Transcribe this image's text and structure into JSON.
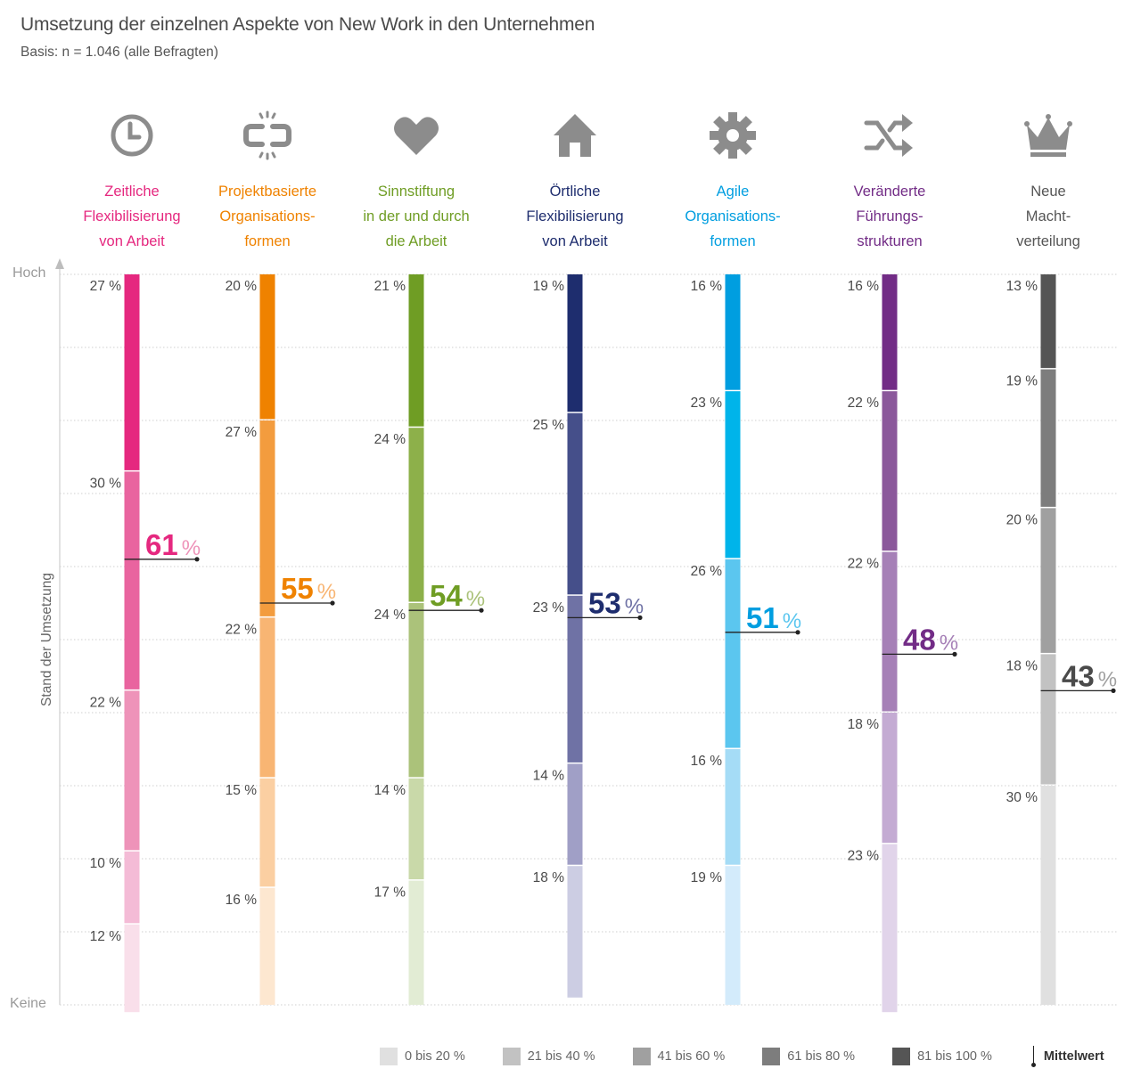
{
  "header": {
    "title": "Umsetzung der einzelnen Aspekte von New Work in den Unternehmen",
    "subtitle": "Basis: n = 1.046 (alle Befragten)"
  },
  "categories": [
    {
      "icon": "clock-icon",
      "label": [
        "Zeitliche",
        "Flexibilisierung",
        "von Arbeit"
      ],
      "color": "#e5287f"
    },
    {
      "icon": "broken-link-icon",
      "label": [
        "Projektbasierte",
        "Organisations-",
        "formen"
      ],
      "color": "#ef8200"
    },
    {
      "icon": "heart-icon",
      "label": [
        "Sinnstiftung",
        "in der und durch",
        "die Arbeit"
      ],
      "color": "#6f9d24"
    },
    {
      "icon": "home-icon",
      "label": [
        "Örtliche",
        "Flexibilisierung",
        "von Arbeit"
      ],
      "color": "#1e2d6e"
    },
    {
      "icon": "gear-icon",
      "label": [
        "Agile",
        "Organisations-",
        "formen"
      ],
      "color": "#009ee0"
    },
    {
      "icon": "shuffle-icon",
      "label": [
        "Veränderte",
        "Führungs-",
        "strukturen"
      ],
      "color": "#722c86"
    },
    {
      "icon": "crown-icon",
      "label": [
        "Neue",
        "Macht-",
        "verteilung"
      ],
      "color": "#555555"
    }
  ],
  "chart_data": {
    "type": "bar",
    "subtype": "stacked-vertical-100",
    "title": "Umsetzung der einzelnen Aspekte von New Work in den Unternehmen",
    "subtitle": "Basis: n = 1.046 (alle Befragten)",
    "ylabel": "Stand der Umsetzung",
    "ytop_label": "Hoch",
    "ybottom_label": "Keine",
    "ylim": [
      0,
      100
    ],
    "grid": true,
    "stack_order": "top-to-bottom: 81 bis 100 %, 61 bis 80 %, 41 bis 60 %, 21 bis 40 %, 0 bis 20 %",
    "categories": [
      "Zeitliche Flexibilisierung von Arbeit",
      "Projektbasierte Organisationsformen",
      "Sinnstiftung in der und durch die Arbeit",
      "Örtliche Flexibilisierung von Arbeit",
      "Agile Organisationsformen",
      "Veränderte Führungsstrukturen",
      "Neue Machtverteilung"
    ],
    "series": [
      {
        "name": "81 bis 100 %",
        "values": [
          27,
          20,
          21,
          19,
          16,
          16,
          13
        ]
      },
      {
        "name": "61 bis 80 %",
        "values": [
          30,
          27,
          24,
          25,
          23,
          22,
          19
        ]
      },
      {
        "name": "41 bis 60 %",
        "values": [
          22,
          22,
          24,
          23,
          26,
          22,
          20
        ]
      },
      {
        "name": "21 bis 40 %",
        "values": [
          10,
          15,
          14,
          14,
          16,
          18,
          18
        ]
      },
      {
        "name": "0 bis 20 %",
        "values": [
          12,
          16,
          17,
          18,
          19,
          23,
          30
        ]
      }
    ],
    "means": [
      61,
      55,
      54,
      53,
      51,
      48,
      43
    ],
    "mean_label": "Mittelwert",
    "value_suffix": " %",
    "shades": {
      "#e5287f": [
        "#e5287f",
        "#e9649f",
        "#ee93b9",
        "#f4bbd6",
        "#f9dfea"
      ],
      "#ef8200": [
        "#ef8200",
        "#f39c3e",
        "#f8b573",
        "#fbcfa2",
        "#fde7d0"
      ],
      "#6f9d24": [
        "#6f9d24",
        "#8db04a",
        "#abc27a",
        "#c9d9a9",
        "#e2ecd4"
      ],
      "#1e2d6e": [
        "#1e2d6e",
        "#454f8a",
        "#6f72a5",
        "#a09fc6",
        "#cccde3"
      ],
      "#009ee0": [
        "#009ee0",
        "#00b4ea",
        "#5bc6ef",
        "#a5dcf6",
        "#d3ebfb"
      ],
      "#722c86": [
        "#722c86",
        "#8b589b",
        "#a680b7",
        "#c4abd3",
        "#e1d4ea"
      ],
      "#555555": [
        "#555555",
        "#7d7d7d",
        "#a0a0a0",
        "#c2c2c2",
        "#e0e0e0"
      ]
    },
    "mean_number_colors": [
      {
        "num": "#e5287f",
        "pct": "#ee93b9"
      },
      {
        "num": "#ef8200",
        "pct": "#f8b573"
      },
      {
        "num": "#6f9d24",
        "pct": "#abc27a"
      },
      {
        "num": "#1e2d6e",
        "pct": "#6f72a5"
      },
      {
        "num": "#009ee0",
        "pct": "#5bc6ef"
      },
      {
        "num": "#722c86",
        "pct": "#a680b7"
      },
      {
        "num": "#4a4a4a",
        "pct": "#a0a0a0"
      }
    ]
  },
  "legend": {
    "items": [
      {
        "label": "0 bis 20 %",
        "color": "#e0e0e0"
      },
      {
        "label": "21 bis 40 %",
        "color": "#c2c2c2"
      },
      {
        "label": "41 bis 60 %",
        "color": "#a0a0a0"
      },
      {
        "label": "61 bis 80 %",
        "color": "#7d7d7d"
      },
      {
        "label": "81 bis 100 %",
        "color": "#555555"
      }
    ],
    "mean_label": "Mittelwert"
  }
}
